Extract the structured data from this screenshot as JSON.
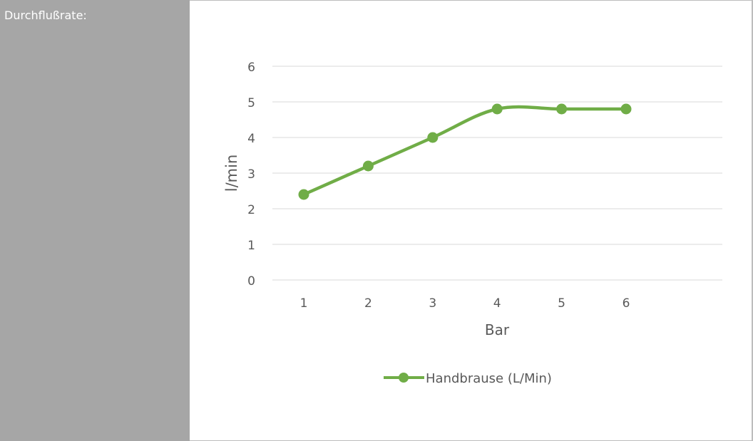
{
  "sidebar": {
    "label": "Durchflußrate:"
  },
  "colors": {
    "sidebar_bg": "#a6a6a6",
    "series_color": "#70ad47",
    "grid_color": "#d9d9d9",
    "text_color": "#595959"
  },
  "chart_data": {
    "type": "line",
    "title": "",
    "xlabel": "Bar",
    "ylabel": "l/min",
    "categories": [
      "1",
      "2",
      "3",
      "4",
      "5",
      "6"
    ],
    "ylim": [
      0,
      6
    ],
    "yticks": [
      "0",
      "1",
      "2",
      "3",
      "4",
      "5",
      "6"
    ],
    "grid": true,
    "smooth": true,
    "legend_position": "bottom",
    "series": [
      {
        "name": "Handbrause (L/Min)",
        "values": [
          2.4,
          3.2,
          4.0,
          4.8,
          4.8,
          4.8
        ],
        "marker": "circle"
      }
    ]
  }
}
